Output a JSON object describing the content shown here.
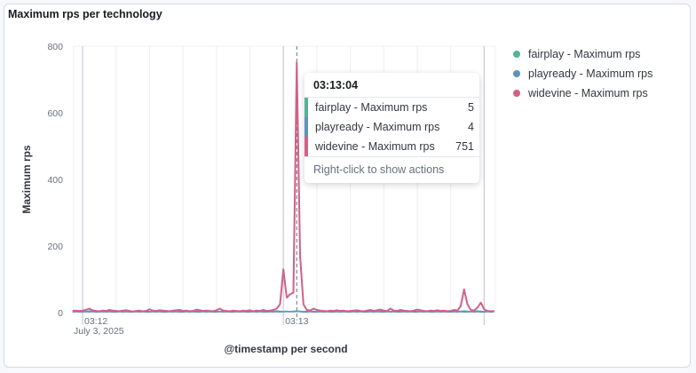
{
  "panel": {
    "title": "Maximum rps per technology"
  },
  "chart_data": {
    "type": "line",
    "title": "Maximum rps per technology",
    "xlabel": "@timestamp per second",
    "ylabel": "Maximum rps",
    "ylim": [
      0,
      800
    ],
    "yticks": [
      0,
      200,
      400,
      600,
      800
    ],
    "x_start": "03:11:57",
    "x_step_seconds": 1,
    "xticks": [
      {
        "label": "03:12",
        "sublabel": "July 3, 2025",
        "second": 3
      },
      {
        "label": "03:13",
        "second": 63
      }
    ],
    "grid": true,
    "legend_position": "right",
    "series": [
      {
        "name": "fairplay - Maximum rps",
        "color": "#54b399",
        "values": [
          3,
          4,
          3,
          4,
          3,
          5,
          4,
          3,
          4,
          3,
          4,
          3,
          4,
          6,
          3,
          4,
          3,
          4,
          3,
          4,
          3,
          4,
          5,
          3,
          4,
          3,
          4,
          3,
          4,
          3,
          4,
          3,
          4,
          3,
          5,
          4,
          3,
          4,
          3,
          4,
          3,
          4,
          3,
          4,
          3,
          5,
          4,
          3,
          4,
          3,
          4,
          3,
          4,
          3,
          4,
          3,
          4,
          3,
          4,
          3,
          4,
          5,
          4,
          3,
          4,
          3,
          4,
          5,
          4,
          3,
          4,
          3,
          4,
          3,
          4,
          3,
          4,
          3,
          4,
          3,
          4,
          3,
          4,
          3,
          4,
          3,
          4,
          3,
          4,
          3,
          4,
          3,
          4,
          3,
          4,
          3,
          4,
          3,
          4,
          3,
          4,
          3,
          4,
          3,
          4,
          3,
          4,
          3,
          4,
          3,
          4,
          3,
          4,
          3,
          4,
          3,
          4,
          5,
          4,
          3,
          4,
          5,
          4,
          3,
          4,
          3,
          4
        ]
      },
      {
        "name": "playready - Maximum rps",
        "color": "#6092c0",
        "values": [
          2,
          3,
          2,
          2,
          3,
          2,
          3,
          2,
          2,
          3,
          2,
          3,
          2,
          2,
          3,
          2,
          3,
          2,
          2,
          3,
          2,
          3,
          2,
          2,
          3,
          2,
          3,
          2,
          2,
          3,
          2,
          3,
          2,
          2,
          3,
          2,
          3,
          2,
          2,
          3,
          2,
          3,
          2,
          2,
          3,
          2,
          3,
          2,
          2,
          3,
          2,
          3,
          2,
          2,
          3,
          2,
          3,
          2,
          2,
          3,
          2,
          3,
          2,
          3,
          3,
          3,
          3,
          4,
          3,
          2,
          2,
          3,
          2,
          2,
          3,
          2,
          3,
          2,
          2,
          3,
          2,
          3,
          2,
          2,
          3,
          2,
          3,
          2,
          2,
          3,
          2,
          3,
          2,
          2,
          3,
          2,
          3,
          2,
          2,
          3,
          2,
          3,
          2,
          2,
          3,
          2,
          3,
          2,
          2,
          3,
          2,
          3,
          2,
          2,
          3,
          2,
          3,
          2,
          2,
          3,
          2,
          3,
          2,
          2,
          3,
          2,
          3
        ]
      },
      {
        "name": "widevine - Maximum rps",
        "color": "#d36086",
        "values": [
          5,
          6,
          5,
          6,
          8,
          12,
          7,
          5,
          4,
          6,
          5,
          8,
          6,
          5,
          4,
          6,
          7,
          5,
          3,
          5,
          6,
          4,
          5,
          10,
          6,
          5,
          7,
          6,
          5,
          4,
          6,
          7,
          8,
          5,
          6,
          4,
          5,
          9,
          7,
          5,
          6,
          5,
          4,
          7,
          12,
          6,
          5,
          4,
          6,
          5,
          4,
          6,
          5,
          7,
          4,
          6,
          5,
          8,
          5,
          6,
          8,
          12,
          25,
          130,
          45,
          55,
          60,
          751,
          170,
          25,
          8,
          6,
          12,
          8,
          6,
          5,
          4,
          6,
          5,
          7,
          5,
          6,
          4,
          5,
          6,
          7,
          5,
          4,
          6,
          8,
          5,
          7,
          9,
          6,
          5,
          12,
          6,
          5,
          8,
          6,
          5,
          4,
          6,
          9,
          7,
          5,
          4,
          6,
          5,
          7,
          5,
          6,
          4,
          5,
          8,
          6,
          20,
          70,
          25,
          8,
          6,
          15,
          30,
          10,
          5,
          4,
          5
        ]
      }
    ],
    "crosshair_second": 67
  },
  "tooltip": {
    "time": "03:13:04",
    "rows": [
      {
        "label": "fairplay - Maximum rps",
        "value": "5",
        "color": "#54b399"
      },
      {
        "label": "playready - Maximum rps",
        "value": "4",
        "color": "#6092c0"
      },
      {
        "label": "widevine - Maximum rps",
        "value": "751",
        "color": "#d36086"
      }
    ],
    "footer": "Right-click to show actions"
  }
}
